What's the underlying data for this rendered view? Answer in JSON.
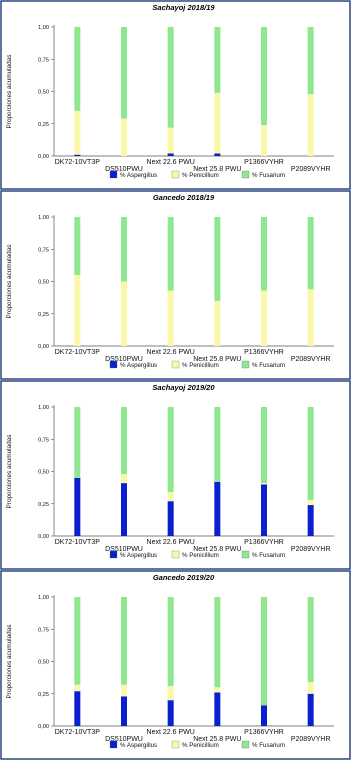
{
  "colors": {
    "aspergillus": "#0a1fd1",
    "penicillium": "#fbf7a8",
    "fusarium": "#8fe88f",
    "frame": "#1f3a78"
  },
  "chart_data": [
    {
      "type": "bar",
      "stacked": true,
      "title": "Sachayoj  2018/19",
      "ylabel": "Proporciones acumuladas",
      "ylim": [
        0,
        1
      ],
      "yticks": [
        "0,00",
        "0,25",
        "0,50",
        "0,75",
        "1,00"
      ],
      "categories": [
        "DK72-10VT3P",
        "DS510PWU",
        "Next 22.6 PWU",
        "Next 25.8 PWU",
        "P1366VYHR",
        "P2089VYHR"
      ],
      "series": [
        {
          "name": "% Aspergillus",
          "values": [
            0.01,
            0.0,
            0.02,
            0.02,
            0.0,
            0.0
          ]
        },
        {
          "name": "% Penicillium",
          "values": [
            0.34,
            0.29,
            0.2,
            0.47,
            0.24,
            0.48
          ]
        },
        {
          "name": "% Fusarium",
          "values": [
            0.65,
            0.71,
            0.78,
            0.51,
            0.76,
            0.52
          ]
        }
      ],
      "legend_position": "bottom"
    },
    {
      "type": "bar",
      "stacked": true,
      "title": "Gancedo  2018/19",
      "ylabel": "Proporciones acumuladas",
      "ylim": [
        0,
        1
      ],
      "yticks": [
        "0,00",
        "0,25",
        "0,50",
        "0,75",
        "1,00"
      ],
      "categories": [
        "DK72-10VT3P",
        "DS510PWU",
        "Next 22.6 PWU",
        "Next 25.8 PWU",
        "P1366VYHR",
        "P2089VYHR"
      ],
      "series": [
        {
          "name": "% Aspergillus",
          "values": [
            0.0,
            0.0,
            0.0,
            0.0,
            0.0,
            0.0
          ]
        },
        {
          "name": "% Penicillium",
          "values": [
            0.55,
            0.5,
            0.43,
            0.35,
            0.43,
            0.44
          ]
        },
        {
          "name": "% Fusarium",
          "values": [
            0.45,
            0.5,
            0.57,
            0.65,
            0.57,
            0.56
          ]
        }
      ],
      "legend_position": "bottom"
    },
    {
      "type": "bar",
      "stacked": true,
      "title": "Sachayoj  2019/20",
      "ylabel": "Proporciones acumuladas",
      "ylim": [
        0,
        1
      ],
      "yticks": [
        "0,00",
        "0,25",
        "0,50",
        "0,75",
        "1,00"
      ],
      "categories": [
        "DK72-10VT3P",
        "DS510PWU",
        "Next 22.6 PWU",
        "Next 25.8 PWU",
        "P1366VYHR",
        "P2089VYHR"
      ],
      "series": [
        {
          "name": "% Aspergillus",
          "values": [
            0.45,
            0.41,
            0.27,
            0.42,
            0.4,
            0.24
          ]
        },
        {
          "name": "% Penicillium",
          "values": [
            0.0,
            0.07,
            0.07,
            0.0,
            0.01,
            0.04
          ]
        },
        {
          "name": "% Fusarium",
          "values": [
            0.55,
            0.52,
            0.66,
            0.58,
            0.59,
            0.72
          ]
        }
      ],
      "legend_position": "bottom"
    },
    {
      "type": "bar",
      "stacked": true,
      "title": "Gancedo  2019/20",
      "ylabel": "Proporciones acumuladas",
      "ylim": [
        0,
        1
      ],
      "yticks": [
        "0,00",
        "0,25",
        "0,50",
        "0,75",
        "1,00"
      ],
      "categories": [
        "DK72-10VT3P",
        "DS510PWU",
        "Next 22.6 PWU",
        "Next 25.8 PWU",
        "P1366VYHR",
        "P2089VYHR"
      ],
      "series": [
        {
          "name": "% Aspergillus",
          "values": [
            0.27,
            0.23,
            0.2,
            0.26,
            0.16,
            0.25
          ]
        },
        {
          "name": "% Penicillium",
          "values": [
            0.05,
            0.09,
            0.11,
            0.04,
            0.0,
            0.09
          ]
        },
        {
          "name": "% Fusarium",
          "values": [
            0.68,
            0.68,
            0.69,
            0.7,
            0.84,
            0.66
          ]
        }
      ],
      "legend_position": "bottom"
    }
  ]
}
